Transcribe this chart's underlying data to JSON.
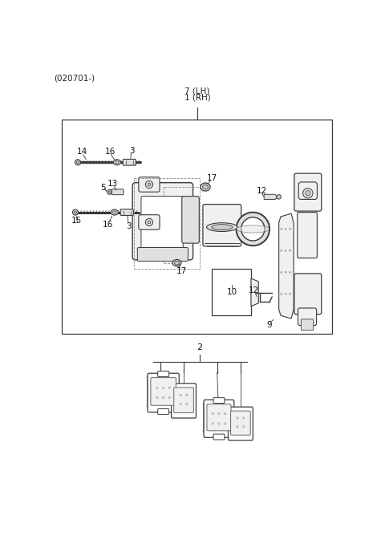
{
  "title": "(020701-)",
  "bg_color": "#ffffff",
  "lc": "#3a3a3a",
  "lw": 0.9,
  "fig_width": 4.8,
  "fig_height": 6.78,
  "dpi": 100,
  "label_7": "7 (LH)",
  "label_1": "1 (RH)",
  "label_2": "2",
  "label_14": "14",
  "label_16a": "16",
  "label_3a": "3",
  "label_5": "5",
  "label_13": "13",
  "label_17a": "17",
  "label_15": "15",
  "label_16b": "16",
  "label_3b": "3",
  "label_17b": "17",
  "label_10": "10",
  "label_12a": "12",
  "label_12b": "12",
  "label_9": "9"
}
